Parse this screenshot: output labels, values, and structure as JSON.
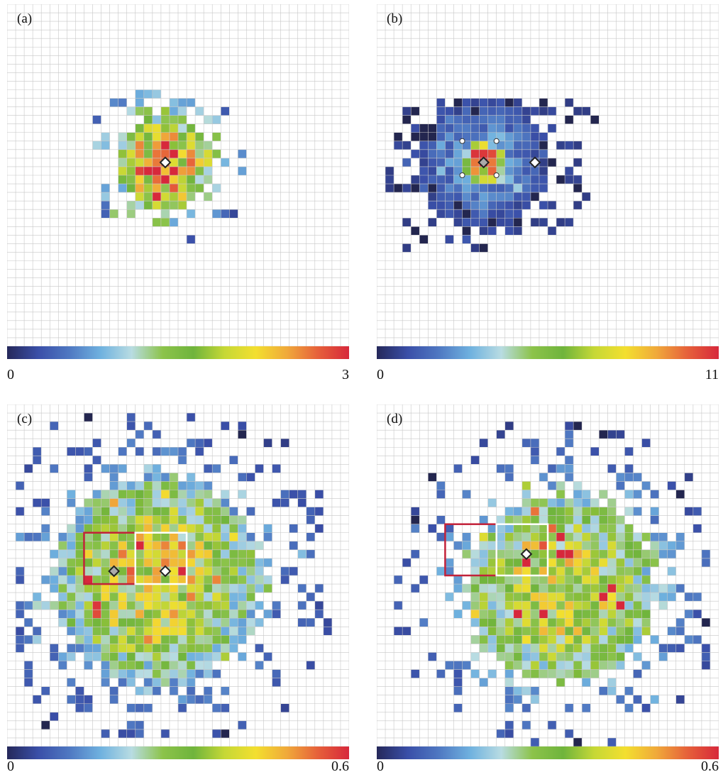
{
  "colorbar_colors": [
    "#25285a",
    "#3a4fa8",
    "#4f78c2",
    "#6fb1df",
    "#b8dce2",
    "#8cc34a",
    "#6fb43c",
    "#c6d836",
    "#f3df2f",
    "#f0a93a",
    "#e6603a",
    "#d7283b"
  ],
  "colors": {
    "grid": "#c7c7c7",
    "red_box": "#c2223a",
    "white_box": "#ffffff",
    "marker_fill": "#ffffff",
    "marker_stroke": "#222222"
  },
  "chart_data": [
    {
      "type": "heatmap",
      "panel_label": "(a)",
      "colorbar": {
        "min_label": "0",
        "max_label": "3",
        "min": 0,
        "max": 3
      },
      "grid_size": 40,
      "center": [
        18,
        18
      ],
      "rings": [
        [
          2,
          2.5
        ],
        [
          5,
          1.5
        ],
        [
          8,
          0.8
        ],
        [
          10,
          0.35
        ]
      ],
      "extent": [
        10,
        30,
        10,
        31
      ],
      "density": 0.7,
      "seed": 11,
      "markers": [
        {
          "shape": "diamond",
          "x": 18,
          "y": 18,
          "fill": "#ffffff"
        }
      ],
      "dots": [],
      "boxes": []
    },
    {
      "type": "heatmap",
      "panel_label": "(b)",
      "colorbar": {
        "min_label": "0",
        "max_label": "11",
        "min": 0,
        "max": 11
      },
      "grid_size": 40,
      "center": [
        12,
        18
      ],
      "rings": [
        [
          1,
          9.5
        ],
        [
          3,
          2.5
        ],
        [
          7,
          0.9
        ],
        [
          14,
          0.3
        ]
      ],
      "extent": [
        1,
        29,
        11,
        28
      ],
      "density": 0.6,
      "seed": 23,
      "markers": [
        {
          "shape": "diamond",
          "x": 12,
          "y": 18,
          "fill": "#aaaaaa"
        },
        {
          "shape": "diamond",
          "x": 18,
          "y": 18,
          "fill": "#ffffff"
        }
      ],
      "dots": [
        [
          10,
          16
        ],
        [
          14,
          16
        ],
        [
          10,
          20
        ],
        [
          14,
          20
        ]
      ],
      "boxes": []
    },
    {
      "type": "heatmap",
      "panel_label": "(c)",
      "colorbar": {
        "min_label": "0",
        "max_label": "0.6",
        "min": 0,
        "max": 0.6
      },
      "grid_size": 40,
      "center": [
        17,
        20
      ],
      "rings": [
        [
          5,
          0.38
        ],
        [
          10,
          0.25
        ],
        [
          15,
          0.1
        ],
        [
          22,
          0.04
        ]
      ],
      "extent": [
        1,
        39,
        1,
        39
      ],
      "density": 0.55,
      "seed": 37,
      "markers": [
        {
          "shape": "diamond",
          "x": 12,
          "y": 19,
          "fill": "#aaaaaa"
        },
        {
          "shape": "diamond",
          "x": 18,
          "y": 19,
          "fill": "#ffffff"
        }
      ],
      "dots": [],
      "boxes": [
        {
          "color": "red",
          "x0": 9,
          "y0": 15,
          "x1": 15,
          "y1": 21
        },
        {
          "color": "white",
          "x0": 15,
          "y0": 15,
          "x1": 21,
          "y1": 21
        }
      ]
    },
    {
      "type": "heatmap",
      "panel_label": "(d)",
      "colorbar": {
        "min_label": "0",
        "max_label": "0.6",
        "min": 0,
        "max": 0.6
      },
      "grid_size": 40,
      "center": [
        21,
        21
      ],
      "rings": [
        [
          5,
          0.36
        ],
        [
          10,
          0.25
        ],
        [
          14,
          0.12
        ],
        [
          20,
          0.04
        ]
      ],
      "extent": [
        1,
        38,
        1,
        39
      ],
      "density": 0.6,
      "seed": 53,
      "markers": [
        {
          "shape": "diamond",
          "x": 17,
          "y": 17,
          "fill": "#ffffff"
        }
      ],
      "dots": [],
      "boxes": [
        {
          "color": "red",
          "x0": 8,
          "y0": 14,
          "x1": 14,
          "y1": 20
        },
        {
          "color": "white",
          "x0": 14,
          "y0": 14,
          "x1": 20,
          "y1": 20
        }
      ]
    }
  ]
}
